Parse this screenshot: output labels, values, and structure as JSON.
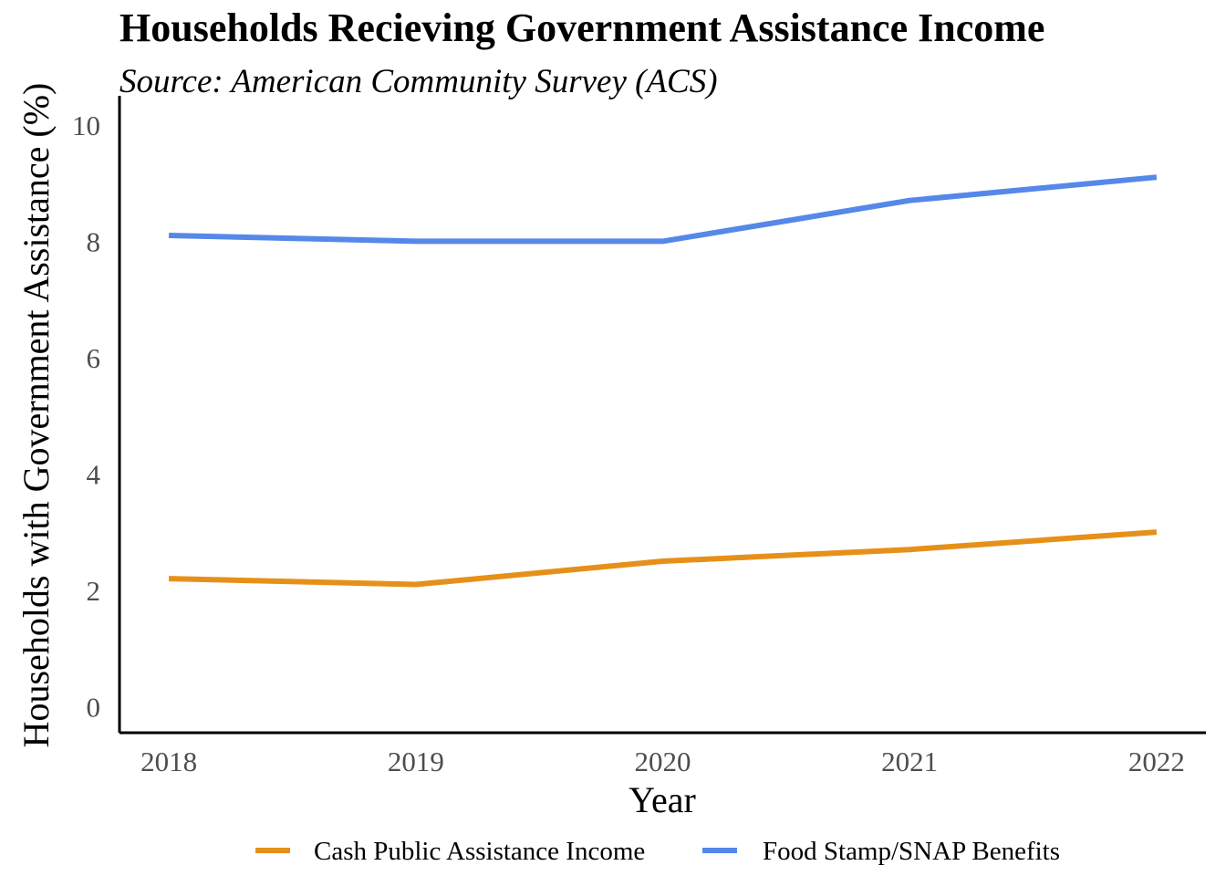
{
  "chart_data": {
    "type": "line",
    "title": "Households Recieving Government Assistance Income",
    "subtitle": "Source: American Community Survey (ACS)",
    "xlabel": "Year",
    "ylabel": "Households with Government Assistance (%)",
    "x": [
      2018,
      2019,
      2020,
      2021,
      2022
    ],
    "x_tick_labels": [
      "2018",
      "2019",
      "2020",
      "2021",
      "2022"
    ],
    "y_ticks": [
      0,
      2,
      4,
      6,
      8,
      10
    ],
    "y_tick_labels": [
      "0",
      "2",
      "4",
      "6",
      "8",
      "10"
    ],
    "xlim": [
      2017.8,
      2022.2
    ],
    "ylim": [
      -0.45,
      10.5
    ],
    "grid": false,
    "legend_position": "bottom",
    "series": [
      {
        "name": "Cash Public Assistance Income",
        "color": "#E69019",
        "values": [
          2.2,
          2.1,
          2.5,
          2.7,
          3.0
        ]
      },
      {
        "name": "Food Stamp/SNAP Benefits",
        "color": "#5588E8",
        "values": [
          8.1,
          8.0,
          8.0,
          8.7,
          9.1
        ]
      }
    ]
  }
}
